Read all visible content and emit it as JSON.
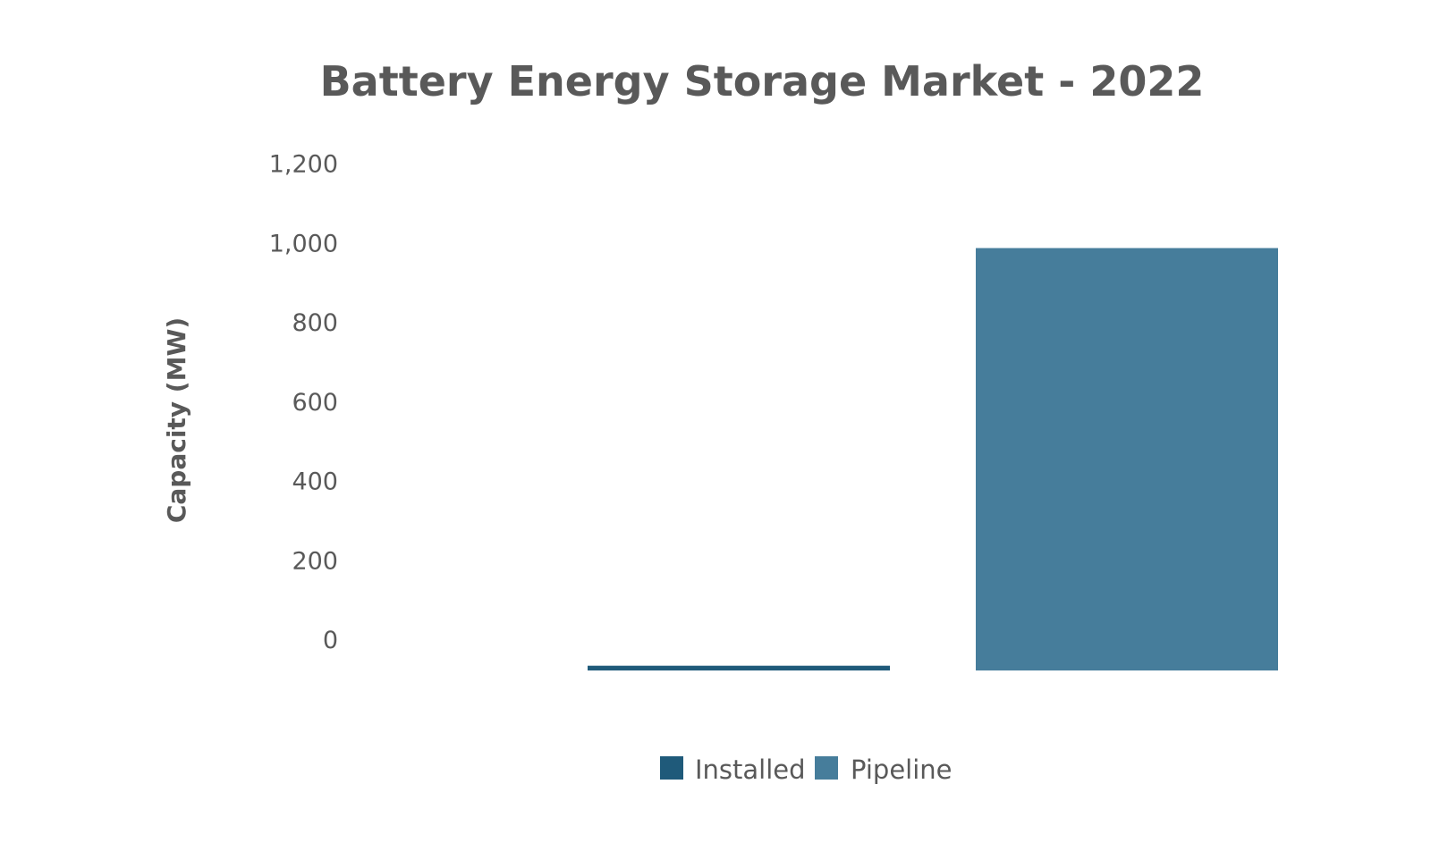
{
  "chart_data": {
    "type": "bar",
    "title": "Battery Energy Storage Market - 2022",
    "xlabel": "",
    "ylabel": "Capacity (MW)",
    "ylim": [
      0,
      1200
    ],
    "yticks": [
      0,
      200,
      400,
      600,
      800,
      1000,
      1200
    ],
    "ytick_labels": [
      "0",
      "200",
      "400",
      "600",
      "800",
      "1,000",
      "1,200"
    ],
    "grid": false,
    "legend_position": "bottom",
    "series": [
      {
        "name": "Installed",
        "value": 12,
        "color": "#1f5a7a"
      },
      {
        "name": "Pipeline",
        "value": 1065,
        "color": "#467d9b"
      }
    ]
  }
}
